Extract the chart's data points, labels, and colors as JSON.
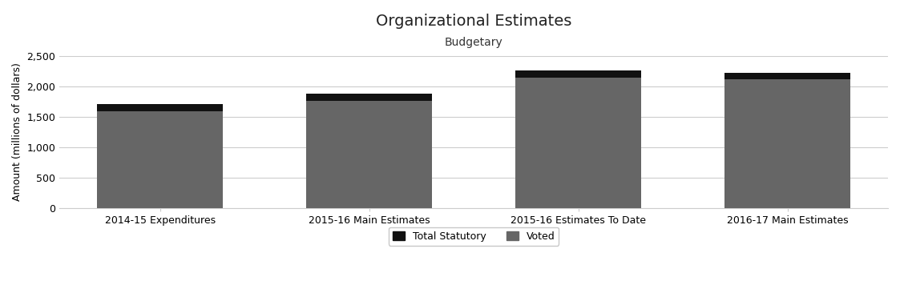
{
  "title": "Organizational Estimates",
  "subtitle": "Budgetary",
  "ylabel": "Amount (millions of dollars)",
  "categories": [
    "2014-15 Expenditures",
    "2015-16 Main Estimates",
    "2015-16 Estimates To Date",
    "2016-17 Main Estimates"
  ],
  "voted": [
    1592,
    1755,
    2143,
    2107
  ],
  "statutory": [
    113,
    120,
    118,
    112
  ],
  "voted_color": "#666666",
  "statutory_color": "#111111",
  "background_color": "#ffffff",
  "grid_color": "#cccccc",
  "ylim": [
    0,
    2500
  ],
  "yticks": [
    0,
    500,
    1000,
    1500,
    2000,
    2500
  ],
  "legend_labels": [
    "Total Statutory",
    "Voted"
  ],
  "title_fontsize": 14,
  "subtitle_fontsize": 10,
  "ylabel_fontsize": 9,
  "tick_fontsize": 9,
  "legend_fontsize": 9,
  "bar_width": 0.6
}
